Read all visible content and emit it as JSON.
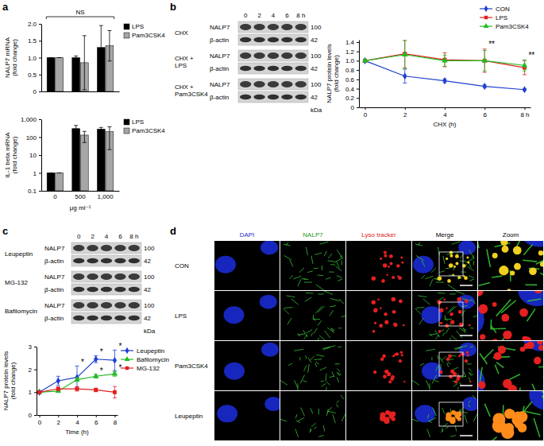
{
  "chart_data": [
    {
      "type": "bar",
      "ylabel": [
        "NALP7 mRNA",
        "(fold change)"
      ],
      "categories": [
        null,
        null,
        null
      ],
      "series": [
        {
          "name": "LPS",
          "color": "#000000",
          "values": [
            1,
            1.0,
            1.3
          ],
          "errors": [
            0,
            0.05,
            0.65
          ]
        },
        {
          "name": "Pam3CSK4",
          "color": "#a6a6a6",
          "values": [
            1,
            0.85,
            1.35
          ],
          "errors": [
            0,
            0.8,
            0.45
          ]
        }
      ],
      "ylim": [
        0,
        2
      ],
      "yticks": [
        0,
        0.5,
        {
          "value": 1,
          "label": "1.0"
        },
        1.5,
        {
          "value": 2,
          "label": "2.0"
        }
      ],
      "legend": "right",
      "tick_labels": "y",
      "annotations": [
        {
          "text": "NS"
        }
      ]
    },
    {
      "type": "bar",
      "log": "y",
      "ylabel": [
        "IL-1 beta mRNA",
        "(fold change)"
      ],
      "xlabel": "μg ml⁻¹",
      "categories": [
        "0",
        "500",
        "1,000"
      ],
      "series": [
        {
          "name": "LPS",
          "color": "#000000",
          "values": [
            1,
            300,
            280
          ],
          "errors": [
            0,
            150,
            70
          ]
        },
        {
          "name": "Pam3CSK4",
          "color": "#a6a6a6",
          "values": [
            1,
            130,
            200
          ],
          "errors": [
            0,
            80,
            180
          ]
        }
      ],
      "ylim": [
        0.1,
        1000
      ],
      "yticks": [
        0.1,
        1,
        10,
        100,
        {
          "value": 1000,
          "label": "1,000"
        }
      ],
      "legend": "right"
    },
    {
      "type": "line",
      "ylabel": [
        "NALP7 protein levels",
        "(fold change)"
      ],
      "xlabel": "CHX (h)",
      "x": [
        0,
        2,
        4,
        6,
        8
      ],
      "xlim": [
        -0.3,
        8.3
      ],
      "xticks": [
        0,
        2,
        4,
        6,
        {
          "value": 8,
          "label": "8 h"
        }
      ],
      "ylim": [
        0,
        1.45
      ],
      "yticks": [
        0,
        0.2,
        0.4,
        0.6,
        0.8,
        {
          "value": 1,
          "label": "1.0"
        },
        1.2,
        1.4
      ],
      "legend": "top-right",
      "series": [
        {
          "name": "CON",
          "color": "#1f3fd0",
          "marker": "diamond",
          "values": [
            1,
            0.67,
            0.57,
            0.45,
            0.38
          ],
          "errors": [
            0,
            0.15,
            0.04,
            0.03,
            0.02
          ]
        },
        {
          "name": "LPS",
          "color": "#e02020",
          "marker": "square",
          "values": [
            1,
            1.15,
            1.02,
            1.0,
            0.85
          ],
          "errors": [
            0,
            0.3,
            0.15,
            0.25,
            0.15
          ]
        },
        {
          "name": "Pam3CSK4",
          "color": "#22bb22",
          "marker": "triangle",
          "values": [
            1,
            1.13,
            1.0,
            1.0,
            0.9
          ],
          "errors": [
            0,
            0.3,
            0.12,
            0.22,
            0.12
          ]
        }
      ],
      "annotations": [
        {
          "text": "**",
          "x": 6,
          "y": 1.3
        },
        {
          "text": "**",
          "x": 8,
          "y": 1.05
        }
      ]
    },
    {
      "type": "line",
      "ylabel": [
        "NALP7 protein levels",
        "(fold change)"
      ],
      "xlabel": "Time (h)",
      "x": [
        0,
        2,
        4,
        6,
        8
      ],
      "xlim": [
        -0.3,
        8.3
      ],
      "xticks": [
        0,
        2,
        4,
        6,
        8
      ],
      "ylim": [
        0,
        3
      ],
      "yticks": [
        0,
        1,
        2,
        3
      ],
      "legend": "right",
      "series": [
        {
          "name": "Leupeptin",
          "color": "#1f3fd0",
          "marker": "diamond",
          "values": [
            1,
            1.5,
            1.65,
            2.45,
            2.4
          ],
          "errors": [
            0,
            0.2,
            0.5,
            0.15,
            0.45
          ]
        },
        {
          "name": "Bafilomycin",
          "color": "#22bb22",
          "marker": "triangle",
          "values": [
            1,
            1.05,
            1.55,
            1.7,
            1.8
          ],
          "errors": [
            0,
            0.05,
            0.08,
            0.08,
            0.1
          ]
        },
        {
          "name": "MG-132",
          "color": "#e02020",
          "marker": "square",
          "values": [
            1,
            1.15,
            1.15,
            1.1,
            1.0
          ],
          "errors": [
            0,
            0.08,
            0.1,
            0.08,
            0.25
          ]
        }
      ],
      "annotations": [
        {
          "text": "*",
          "x": 4,
          "y": 2.2
        },
        {
          "text": "*",
          "x": 6,
          "y": 2.65
        },
        {
          "text": "*",
          "x": 8,
          "y": 2.9
        },
        {
          "text": "*",
          "x": 6,
          "y": 1.82
        },
        {
          "text": "*",
          "x": 8,
          "y": 1.95
        }
      ]
    }
  ],
  "panel_letters": [
    "a",
    "b",
    "c",
    "d"
  ],
  "blots": [
    {
      "times": [
        "0",
        "2",
        "4",
        "6",
        "8 h"
      ],
      "unit": "kDa",
      "rows": [
        {
          "treatment": [
            "CHX"
          ],
          "bands": [
            {
              "label": "NALP7",
              "kda": "100"
            },
            {
              "label": "β-actin",
              "kda": "42"
            }
          ]
        },
        {
          "treatment": [
            "CHX +",
            "LPS"
          ],
          "bands": [
            {
              "label": "NALP7",
              "kda": "100"
            },
            {
              "label": "β-actin",
              "kda": "42"
            }
          ]
        },
        {
          "treatment": [
            "CHX +",
            "Pam3CSK4"
          ],
          "bands": [
            {
              "label": "NALP7",
              "kda": "100"
            },
            {
              "label": "β-actin",
              "kda": "42"
            }
          ]
        }
      ]
    },
    {
      "times": [
        "0",
        "2",
        "4",
        "6",
        "8 h"
      ],
      "unit": "kDa",
      "rows": [
        {
          "treatment": [
            "Leupeptin"
          ],
          "bands": [
            {
              "label": "NALP7",
              "kda": "100"
            },
            {
              "label": "β-actin",
              "kda": "42"
            }
          ]
        },
        {
          "treatment": [
            "MG-132"
          ],
          "bands": [
            {
              "label": "NALP7",
              "kda": "100"
            },
            {
              "label": "β-actin",
              "kda": "42"
            }
          ]
        },
        {
          "treatment": [
            "Bafilomycin"
          ],
          "bands": [
            {
              "label": "NALP7",
              "kda": "100"
            },
            {
              "label": "β-actin",
              "kda": "42"
            }
          ]
        }
      ]
    }
  ],
  "microscopy": {
    "columns": [
      "DAPI",
      "NALP7",
      "Lyso tracker",
      "Merge",
      "Zoom"
    ],
    "rows": [
      "CON",
      "LPS",
      "Pam3CSK4",
      "Leupeptin"
    ]
  }
}
